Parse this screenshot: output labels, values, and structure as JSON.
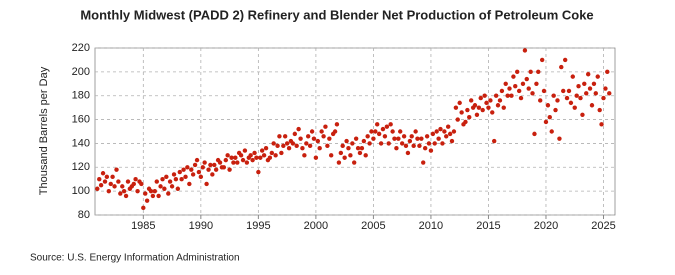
{
  "chart_data": {
    "type": "scatter",
    "title": "Monthly Midwest (PADD 2) Refinery and Blender Net Production of Petroleum Coke",
    "y_label": "Thousand Barrels per Day",
    "source": "Source: U.S. Energy Information Administration",
    "color": "#c8200e",
    "grid": true,
    "xlim": [
      1980.8,
      2026
    ],
    "xticks": [
      1985,
      1990,
      1995,
      2000,
      2005,
      2010,
      2015,
      2020,
      2025
    ],
    "ylim": [
      80,
      220
    ],
    "yticks": [
      80,
      100,
      120,
      140,
      160,
      180,
      200,
      220
    ],
    "x": [
      1981,
      1981.17,
      1981.33,
      1981.5,
      1981.67,
      1981.83,
      1982,
      1982.17,
      1982.33,
      1982.5,
      1982.67,
      1982.83,
      1983,
      1983.17,
      1983.33,
      1983.5,
      1983.67,
      1983.83,
      1984,
      1984.17,
      1984.33,
      1984.5,
      1984.67,
      1984.83,
      1985,
      1985.17,
      1985.33,
      1985.5,
      1985.67,
      1985.83,
      1986,
      1986.17,
      1986.33,
      1986.5,
      1986.67,
      1986.83,
      1987,
      1987.17,
      1987.33,
      1987.5,
      1987.67,
      1987.83,
      1988,
      1988.17,
      1988.33,
      1988.5,
      1988.67,
      1988.83,
      1989,
      1989.17,
      1989.33,
      1989.5,
      1989.67,
      1989.83,
      1990,
      1990.17,
      1990.33,
      1990.5,
      1990.67,
      1990.83,
      1991,
      1991.17,
      1991.33,
      1991.5,
      1991.67,
      1991.83,
      1992,
      1992.17,
      1992.33,
      1992.5,
      1992.67,
      1992.83,
      1993,
      1993.17,
      1993.33,
      1993.5,
      1993.67,
      1993.83,
      1994,
      1994.17,
      1994.33,
      1994.5,
      1994.67,
      1994.83,
      1995,
      1995.17,
      1995.33,
      1995.5,
      1995.67,
      1995.83,
      1996,
      1996.17,
      1996.33,
      1996.5,
      1996.67,
      1996.83,
      1997,
      1997.17,
      1997.33,
      1997.5,
      1997.67,
      1997.83,
      1998,
      1998.17,
      1998.33,
      1998.5,
      1998.67,
      1998.83,
      1999,
      1999.17,
      1999.33,
      1999.5,
      1999.67,
      1999.83,
      2000,
      2000.17,
      2000.33,
      2000.5,
      2000.67,
      2000.83,
      2001,
      2001.17,
      2001.33,
      2001.5,
      2001.67,
      2001.83,
      2002,
      2002.17,
      2002.33,
      2002.5,
      2002.67,
      2002.83,
      2003,
      2003.17,
      2003.33,
      2003.5,
      2003.67,
      2003.83,
      2004,
      2004.17,
      2004.33,
      2004.5,
      2004.67,
      2004.83,
      2005,
      2005.17,
      2005.33,
      2005.5,
      2005.67,
      2005.83,
      2006,
      2006.17,
      2006.33,
      2006.5,
      2006.67,
      2006.83,
      2007,
      2007.17,
      2007.33,
      2007.5,
      2007.67,
      2007.83,
      2008,
      2008.17,
      2008.33,
      2008.5,
      2008.67,
      2008.83,
      2009,
      2009.17,
      2009.33,
      2009.5,
      2009.67,
      2009.83,
      2010,
      2010.17,
      2010.33,
      2010.5,
      2010.67,
      2010.83,
      2011,
      2011.17,
      2011.33,
      2011.5,
      2011.67,
      2011.83,
      2012,
      2012.17,
      2012.33,
      2012.5,
      2012.67,
      2012.83,
      2013,
      2013.17,
      2013.33,
      2013.5,
      2013.67,
      2013.83,
      2014,
      2014.17,
      2014.33,
      2014.5,
      2014.67,
      2014.83,
      2015,
      2015.17,
      2015.33,
      2015.5,
      2015.67,
      2015.83,
      2016,
      2016.17,
      2016.33,
      2016.5,
      2016.67,
      2016.83,
      2017,
      2017.17,
      2017.33,
      2017.5,
      2017.67,
      2017.83,
      2018,
      2018.17,
      2018.33,
      2018.5,
      2018.67,
      2018.83,
      2019,
      2019.17,
      2019.33,
      2019.5,
      2019.67,
      2019.83,
      2020,
      2020.17,
      2020.33,
      2020.5,
      2020.67,
      2020.83,
      2021,
      2021.17,
      2021.33,
      2021.5,
      2021.67,
      2021.83,
      2022,
      2022.17,
      2022.33,
      2022.5,
      2022.67,
      2022.83,
      2023,
      2023.17,
      2023.33,
      2023.5,
      2023.67,
      2023.83,
      2024,
      2024.17,
      2024.33,
      2024.5,
      2024.67,
      2024.83,
      2025,
      2025.17,
      2025.33,
      2025.5
    ],
    "values": [
      102,
      110,
      105,
      115,
      108,
      112,
      100,
      106,
      112,
      104,
      118,
      108,
      98,
      104,
      100,
      96,
      108,
      102,
      104,
      106,
      110,
      100,
      108,
      106,
      86,
      98,
      92,
      102,
      100,
      96,
      100,
      108,
      96,
      104,
      110,
      102,
      112,
      98,
      108,
      104,
      114,
      110,
      102,
      116,
      110,
      118,
      112,
      120,
      106,
      118,
      114,
      122,
      126,
      116,
      112,
      120,
      124,
      106,
      118,
      122,
      114,
      122,
      118,
      126,
      124,
      120,
      120,
      126,
      130,
      118,
      128,
      124,
      128,
      124,
      132,
      130,
      126,
      134,
      124,
      128,
      130,
      126,
      132,
      128,
      116,
      128,
      134,
      130,
      136,
      126,
      128,
      132,
      140,
      130,
      138,
      146,
      132,
      138,
      146,
      140,
      136,
      142,
      140,
      148,
      138,
      152,
      144,
      136,
      130,
      140,
      146,
      138,
      150,
      144,
      128,
      142,
      136,
      150,
      146,
      154,
      138,
      144,
      130,
      148,
      150,
      156,
      124,
      132,
      138,
      128,
      142,
      136,
      130,
      140,
      124,
      144,
      136,
      132,
      136,
      142,
      130,
      146,
      140,
      150,
      144,
      150,
      156,
      148,
      140,
      152,
      146,
      154,
      140,
      156,
      150,
      144,
      136,
      144,
      150,
      140,
      146,
      138,
      132,
      142,
      146,
      138,
      150,
      144,
      138,
      144,
      124,
      136,
      146,
      140,
      134,
      148,
      140,
      150,
      144,
      152,
      140,
      150,
      146,
      154,
      148,
      142,
      150,
      170,
      160,
      174,
      166,
      156,
      158,
      168,
      162,
      176,
      170,
      172,
      164,
      170,
      178,
      168,
      180,
      174,
      170,
      176,
      166,
      142,
      180,
      172,
      176,
      184,
      170,
      190,
      180,
      186,
      180,
      196,
      188,
      200,
      184,
      178,
      190,
      218,
      194,
      186,
      200,
      182,
      148,
      190,
      200,
      176,
      210,
      184,
      158,
      172,
      162,
      150,
      180,
      168,
      176,
      144,
      204,
      184,
      210,
      178,
      184,
      174,
      196,
      170,
      180,
      188,
      178,
      164,
      190,
      182,
      198,
      186,
      172,
      190,
      182,
      196,
      168,
      156,
      178,
      186,
      200,
      182
    ]
  }
}
